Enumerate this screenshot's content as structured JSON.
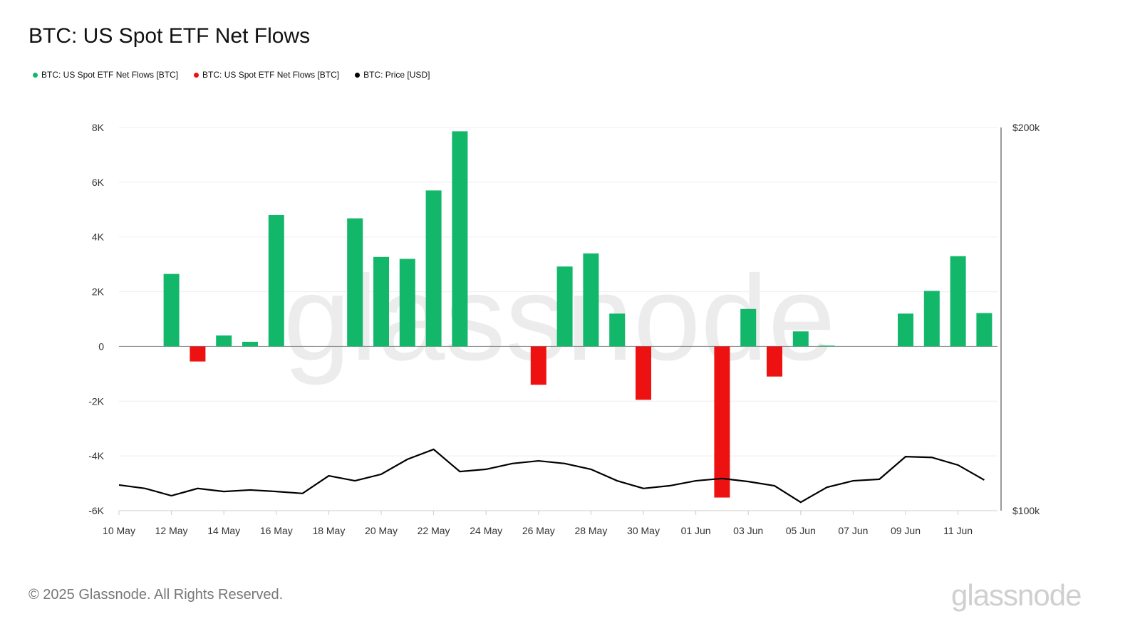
{
  "title": "BTC: US Spot ETF Net Flows",
  "legend": [
    {
      "label": "BTC: US Spot ETF Net Flows [BTC]",
      "color": "#12b76a"
    },
    {
      "label": "BTC: US Spot ETF Net Flows [BTC]",
      "color": "#ee1111"
    },
    {
      "label": "BTC: Price [USD]",
      "color": "#000000"
    }
  ],
  "footer": "© 2025 Glassnode. All Rights Reserved.",
  "logo": "glassnode",
  "chart_data": {
    "type": "bar",
    "title": "BTC: US Spot ETF Net Flows",
    "x": [
      "10 May",
      "11 May",
      "12 May",
      "13 May",
      "14 May",
      "15 May",
      "16 May",
      "17 May",
      "18 May",
      "19 May",
      "20 May",
      "21 May",
      "22 May",
      "23 May",
      "24 May",
      "25 May",
      "26 May",
      "27 May",
      "28 May",
      "29 May",
      "30 May",
      "31 May",
      "01 Jun",
      "02 Jun",
      "03 Jun",
      "04 Jun",
      "05 Jun",
      "06 Jun",
      "07 Jun",
      "08 Jun",
      "09 Jun",
      "10 Jun",
      "11 Jun",
      "12 Jun"
    ],
    "x_tick_labels": [
      "10 May",
      "12 May",
      "14 May",
      "16 May",
      "18 May",
      "20 May",
      "22 May",
      "24 May",
      "26 May",
      "28 May",
      "30 May",
      "01 Jun",
      "03 Jun",
      "05 Jun",
      "07 Jun",
      "09 Jun",
      "11 Jun"
    ],
    "series": [
      {
        "name": "BTC: US Spot ETF Net Flows [BTC]",
        "type": "bar",
        "axis": "left",
        "positive_color": "#12b76a",
        "negative_color": "#ee1111",
        "values": [
          0,
          0,
          2650,
          -550,
          400,
          170,
          4800,
          0,
          0,
          4680,
          3270,
          3200,
          5700,
          7860,
          0,
          0,
          -1400,
          2920,
          3400,
          1200,
          -1950,
          0,
          0,
          -5520,
          1370,
          -1100,
          550,
          30,
          0,
          0,
          1200,
          2030,
          3300,
          1220
        ]
      },
      {
        "name": "BTC: Price [USD]",
        "type": "line",
        "axis": "right",
        "color": "#000000",
        "values": [
          106700,
          105800,
          103900,
          105800,
          105000,
          105400,
          105000,
          104500,
          109100,
          107800,
          109500,
          113400,
          116000,
          110200,
          110800,
          112300,
          113000,
          112300,
          110800,
          107800,
          105800,
          106500,
          107800,
          108400,
          107600,
          106500,
          102200,
          106100,
          107800,
          108200,
          114100,
          113900,
          111900,
          108000
        ]
      }
    ],
    "y_left": {
      "range": [
        -6000,
        8000
      ],
      "ticks": [
        8000,
        6000,
        4000,
        2000,
        0,
        -2000,
        -4000,
        -6000
      ],
      "tick_labels": [
        "8K",
        "6K",
        "4K",
        "2K",
        "0",
        "-2K",
        "-4K",
        "-6K"
      ]
    },
    "y_right": {
      "range": [
        100000,
        200000
      ],
      "tick_labels": [
        "$200k",
        "$100k"
      ]
    },
    "grid": true,
    "legend_position": "top-left"
  }
}
